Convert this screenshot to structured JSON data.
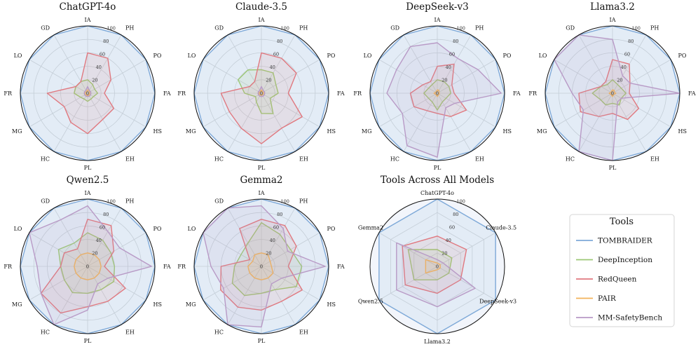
{
  "legend": {
    "title": "Tools",
    "items": [
      {
        "name": "TOMBRAIDER",
        "color": "#7ea9d8"
      },
      {
        "name": "DeepInception",
        "color": "#9cc875"
      },
      {
        "name": "RedQueen",
        "color": "#e0787f"
      },
      {
        "name": "PAIR",
        "color": "#f2b35a"
      },
      {
        "name": "MM-SafetyBench",
        "color": "#b89ac6"
      }
    ]
  },
  "chart_data": [
    {
      "type": "radar",
      "title": "ChatGPT-4o",
      "axes": [
        "IA",
        "PH",
        "PO",
        "FA",
        "HS",
        "EH",
        "PL",
        "HC",
        "MG",
        "FR",
        "LO",
        "GD"
      ],
      "rticks": [
        0,
        20,
        40,
        60,
        80,
        100
      ],
      "rlim": [
        0,
        100
      ],
      "series": [
        {
          "name": "TOMBRAIDER",
          "values": [
            100,
            100,
            100,
            100,
            100,
            100,
            100,
            100,
            100,
            100,
            100,
            100
          ]
        },
        {
          "name": "DeepInception",
          "values": [
            20,
            15,
            12,
            15,
            10,
            10,
            12,
            10,
            12,
            20,
            20,
            20
          ]
        },
        {
          "name": "RedQueen",
          "values": [
            60,
            60,
            40,
            25,
            45,
            45,
            60,
            50,
            40,
            60,
            20,
            20
          ]
        },
        {
          "name": "PAIR",
          "values": [
            5,
            5,
            3,
            3,
            3,
            3,
            5,
            3,
            3,
            5,
            3,
            3
          ]
        },
        {
          "name": "MM-SafetyBench",
          "values": [
            10,
            5,
            5,
            5,
            5,
            5,
            5,
            5,
            5,
            5,
            5,
            5
          ]
        }
      ]
    },
    {
      "type": "radar",
      "title": "Claude-3.5",
      "axes": [
        "IA",
        "PH",
        "PO",
        "FA",
        "HS",
        "EH",
        "PL",
        "HC",
        "MG",
        "FR",
        "LO",
        "GD"
      ],
      "rticks": [
        0,
        20,
        40,
        60,
        80,
        100
      ],
      "rlim": [
        0,
        100
      ],
      "series": [
        {
          "name": "TOMBRAIDER",
          "values": [
            100,
            100,
            100,
            100,
            100,
            100,
            100,
            100,
            100,
            100,
            100,
            100
          ]
        },
        {
          "name": "DeepInception",
          "values": [
            35,
            35,
            25,
            25,
            15,
            35,
            30,
            15,
            10,
            25,
            40,
            40
          ]
        },
        {
          "name": "RedQueen",
          "values": [
            60,
            60,
            60,
            40,
            70,
            60,
            75,
            60,
            55,
            60,
            20,
            20
          ]
        },
        {
          "name": "PAIR",
          "values": [
            5,
            3,
            3,
            3,
            3,
            3,
            3,
            3,
            3,
            5,
            3,
            3
          ]
        },
        {
          "name": "MM-SafetyBench",
          "values": [
            10,
            5,
            5,
            5,
            5,
            5,
            5,
            5,
            5,
            5,
            5,
            5
          ]
        }
      ]
    },
    {
      "type": "radar",
      "title": "DeepSeek-v3",
      "axes": [
        "IA",
        "PH",
        "PO",
        "FA",
        "HS",
        "EH",
        "PL",
        "HC",
        "MG",
        "FR",
        "LO",
        "GD"
      ],
      "rticks": [
        0,
        20,
        40,
        60,
        80,
        100
      ],
      "rlim": [
        0,
        100
      ],
      "series": [
        {
          "name": "TOMBRAIDER",
          "values": [
            100,
            100,
            100,
            100,
            100,
            100,
            100,
            100,
            100,
            100,
            100,
            100
          ]
        },
        {
          "name": "DeepInception",
          "values": [
            20,
            20,
            20,
            20,
            15,
            15,
            25,
            15,
            15,
            20,
            15,
            15
          ]
        },
        {
          "name": "RedQueen",
          "values": [
            40,
            50,
            25,
            25,
            50,
            40,
            30,
            30,
            40,
            40,
            25,
            20
          ]
        },
        {
          "name": "PAIR",
          "values": [
            5,
            5,
            3,
            3,
            3,
            3,
            5,
            3,
            3,
            5,
            3,
            3
          ]
        },
        {
          "name": "MM-SafetyBench",
          "values": [
            75,
            60,
            70,
            95,
            30,
            25,
            95,
            90,
            60,
            75,
            70,
            80
          ]
        }
      ]
    },
    {
      "type": "radar",
      "title": "Llama3.2",
      "axes": [
        "IA",
        "PH",
        "PO",
        "FA",
        "HS",
        "EH",
        "PL",
        "HC",
        "MG",
        "FR",
        "LO",
        "GD"
      ],
      "rticks": [
        0,
        20,
        40,
        60,
        80,
        100
      ],
      "rlim": [
        0,
        100
      ],
      "series": [
        {
          "name": "TOMBRAIDER",
          "values": [
            100,
            100,
            100,
            100,
            100,
            100,
            100,
            100,
            100,
            100,
            100,
            100
          ]
        },
        {
          "name": "DeepInception",
          "values": [
            20,
            15,
            15,
            20,
            15,
            20,
            15,
            20,
            20,
            30,
            20,
            15
          ]
        },
        {
          "name": "RedQueen",
          "values": [
            50,
            50,
            30,
            25,
            45,
            45,
            30,
            40,
            55,
            50,
            20,
            20
          ]
        },
        {
          "name": "PAIR",
          "values": [
            5,
            5,
            3,
            5,
            3,
            3,
            5,
            3,
            3,
            5,
            3,
            3
          ]
        },
        {
          "name": "MM-SafetyBench",
          "values": [
            80,
            30,
            30,
            100,
            15,
            15,
            100,
            100,
            50,
            60,
            100,
            100
          ]
        }
      ]
    },
    {
      "type": "radar",
      "title": "Qwen2.5",
      "axes": [
        "IA",
        "PH",
        "PO",
        "FA",
        "HS",
        "EH",
        "PL",
        "HC",
        "MG",
        "FR",
        "LO",
        "GD"
      ],
      "rticks": [
        0,
        20,
        40,
        60,
        80,
        100
      ],
      "rlim": [
        0,
        100
      ],
      "series": [
        {
          "name": "TOMBRAIDER",
          "values": [
            100,
            100,
            100,
            100,
            100,
            100,
            100,
            100,
            100,
            100,
            100,
            100
          ]
        },
        {
          "name": "DeepInception",
          "values": [
            50,
            45,
            40,
            40,
            45,
            40,
            40,
            45,
            40,
            40,
            50,
            40
          ]
        },
        {
          "name": "RedQueen",
          "values": [
            70,
            70,
            45,
            25,
            65,
            60,
            60,
            80,
            80,
            40,
            40,
            30
          ]
        },
        {
          "name": "PAIR",
          "values": [
            20,
            20,
            20,
            20,
            20,
            20,
            20,
            20,
            20,
            20,
            20,
            20
          ]
        },
        {
          "name": "MM-SafetyBench",
          "values": [
            90,
            60,
            55,
            95,
            35,
            30,
            65,
            100,
            80,
            75,
            100,
            80
          ]
        }
      ]
    },
    {
      "type": "radar",
      "title": "Gemma2",
      "axes": [
        "IA",
        "PH",
        "PO",
        "FA",
        "HS",
        "EH",
        "PL",
        "HC",
        "MG",
        "FR",
        "LO",
        "GD"
      ],
      "rticks": [
        0,
        20,
        40,
        60,
        80,
        100
      ],
      "rlim": [
        0,
        100
      ],
      "series": [
        {
          "name": "TOMBRAIDER",
          "values": [
            100,
            100,
            100,
            100,
            100,
            100,
            100,
            100,
            100,
            100,
            100,
            100
          ]
        },
        {
          "name": "DeepInception",
          "values": [
            65,
            55,
            50,
            60,
            60,
            40,
            40,
            50,
            50,
            40,
            35,
            40
          ]
        },
        {
          "name": "RedQueen",
          "values": [
            70,
            70,
            60,
            40,
            70,
            60,
            65,
            70,
            70,
            60,
            20,
            65
          ]
        },
        {
          "name": "PAIR",
          "values": [
            20,
            20,
            15,
            15,
            20,
            20,
            20,
            20,
            20,
            20,
            15,
            20
          ]
        },
        {
          "name": "MM-SafetyBench",
          "values": [
            90,
            65,
            45,
            95,
            35,
            30,
            90,
            100,
            65,
            75,
            100,
            100
          ]
        }
      ]
    },
    {
      "type": "radar",
      "title": "Tools Across All Models",
      "axes": [
        "ChatGPT-4o",
        "Claude-3.5",
        "DeepSeek-v3",
        "Llama3.2",
        "Qwen2.5",
        "Gemma2"
      ],
      "rticks": [
        0,
        20,
        40,
        60,
        80,
        100
      ],
      "rlim": [
        0,
        100
      ],
      "series": [
        {
          "name": "TOMBRAIDER",
          "values": [
            100,
            100,
            100,
            100,
            100,
            100
          ]
        },
        {
          "name": "DeepInception",
          "values": [
            25,
            25,
            20,
            20,
            40,
            50
          ]
        },
        {
          "name": "RedQueen",
          "values": [
            45,
            50,
            40,
            40,
            55,
            60
          ]
        },
        {
          "name": "PAIR",
          "values": [
            5,
            5,
            5,
            5,
            20,
            20
          ]
        },
        {
          "name": "MM-SafetyBench",
          "values": [
            10,
            10,
            65,
            60,
            70,
            70
          ]
        }
      ]
    }
  ]
}
